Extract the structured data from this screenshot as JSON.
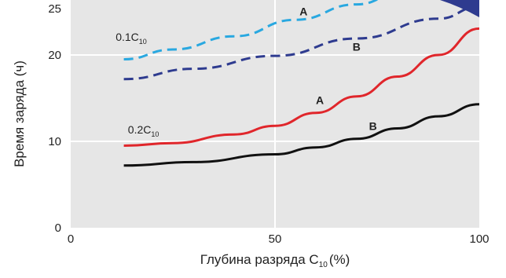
{
  "chart_data": {
    "type": "line",
    "xlabel": "Глубина разряда C",
    "xlabel_sub": "10",
    "xlabel_unit": "(%)",
    "ylabel": "Время заряда (ч)",
    "xlim": [
      0,
      100
    ],
    "ylim": [
      0,
      25
    ],
    "x_ticks": [
      0,
      50,
      100
    ],
    "y_ticks": [
      0,
      10,
      20,
      25
    ],
    "grid": true,
    "legend": "none",
    "series": [
      {
        "name": "A",
        "group": "0.1C10",
        "style": "dashed",
        "color": "#29a8e0",
        "x": [
          13,
          25,
          40,
          55,
          70,
          80
        ],
        "y": [
          19.5,
          20.5,
          21.7,
          23.2,
          24.6,
          25.5
        ]
      },
      {
        "name": "B",
        "group": "0.1C10",
        "style": "dashed",
        "color": "#2e3b8f",
        "x": [
          13,
          30,
          50,
          70,
          90,
          100
        ],
        "y": [
          17.2,
          18.4,
          19.9,
          21.5,
          23.3,
          24.4
        ]
      },
      {
        "name": "A",
        "group": "0.2C10",
        "style": "solid",
        "color": "#e0262b",
        "x": [
          13,
          25,
          40,
          50,
          60,
          70,
          80,
          90,
          100
        ],
        "y": [
          9.5,
          9.8,
          10.8,
          11.8,
          13.3,
          15.2,
          17.5,
          20.0,
          22.4
        ]
      },
      {
        "name": "B",
        "group": "0.2C10",
        "style": "solid",
        "color": "#111111",
        "x": [
          13,
          30,
          50,
          60,
          70,
          80,
          90,
          100
        ],
        "y": [
          7.2,
          7.6,
          8.5,
          9.3,
          10.3,
          11.5,
          12.9,
          14.3
        ]
      }
    ],
    "annotations": [
      {
        "text": "0.1C",
        "sub": "10",
        "x": 11,
        "y": 21.3
      },
      {
        "text": "0.2C",
        "sub": "10",
        "x": 14,
        "y": 10.9
      },
      {
        "text": "A",
        "x": 56,
        "y": 23.6
      },
      {
        "text": "B",
        "x": 69,
        "y": 20.4
      },
      {
        "text": "A",
        "x": 60,
        "y": 14.3
      },
      {
        "text": "B",
        "x": 73,
        "y": 11.3
      }
    ]
  }
}
